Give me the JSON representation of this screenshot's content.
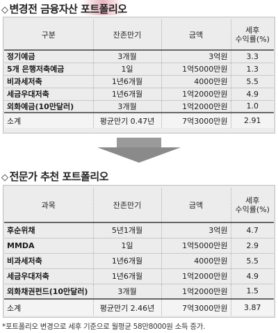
{
  "before": {
    "title": "변경전 금융자산 포트폴리오",
    "headers": [
      "구분",
      "잔존만기",
      "금액",
      "세후\n수익률(%)"
    ],
    "rows": [
      [
        "정기예금",
        "3개월",
        "3억원",
        "3.3"
      ],
      [
        "5개 은행저축예금",
        "1일",
        "1억5000만원",
        "1.3"
      ],
      [
        "비과세저축",
        "1년6개월",
        "4000만원",
        "5.5"
      ],
      [
        "세금우대저축",
        "1년6개월",
        "1억2000만원",
        "4.9"
      ],
      [
        "외화예금(10만달러)",
        "3개월",
        "1억2000만원",
        "1.0"
      ]
    ],
    "total": [
      "소계",
      "평균만기 0.47년",
      "7억3000만원",
      "2.91"
    ]
  },
  "after": {
    "title": "전문가 추천 포트폴리오",
    "headers": [
      "과목",
      "잔존만기",
      "금액",
      "세후\n수익률(%)"
    ],
    "rows": [
      [
        "후순위채",
        "5년1개월",
        "3억원",
        "4.7"
      ],
      [
        "MMDA",
        "1일",
        "1억5000만원",
        "2.9"
      ],
      [
        "비과세저축",
        "1년6개월",
        "4000만원",
        "5.5"
      ],
      [
        "세금우대저축",
        "1년6개월",
        "1억2000만원",
        "4.9"
      ],
      [
        "외화채권펀드(10만달러)",
        "3개월",
        "1억2000만원",
        "1.5"
      ]
    ],
    "total": [
      "소계",
      "평균만기 2.46년",
      "7억3000만원",
      "3.87"
    ]
  },
  "footnote": "*포트폴리오 변경으로 세후 기준으로 월평균 58만8000원 소득 증가.",
  "icons": {
    "section_marker": "◇",
    "transition": "down-arrow-icon"
  },
  "colors": {
    "panel": "#ececec",
    "arrow": "#8a8a8a",
    "accent": "#d2788c"
  }
}
